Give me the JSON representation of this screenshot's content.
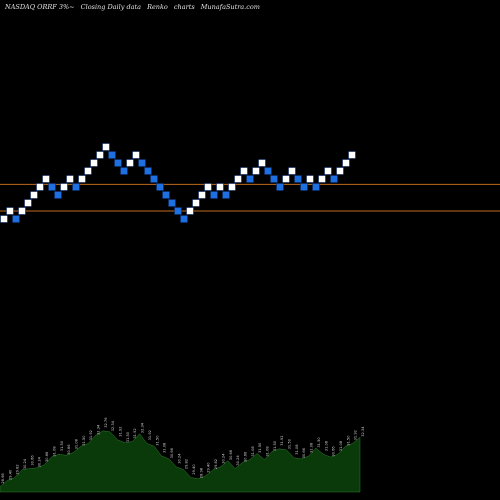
{
  "title": {
    "parts": [
      {
        "key": "ticker",
        "text": "NASDAQ ORRF 3%~"
      },
      {
        "key": "desc",
        "text": "Closing Daily data"
      },
      {
        "key": "type",
        "text": "Renko"
      },
      {
        "key": "word",
        "text": "charts"
      },
      {
        "key": "site",
        "text": "MunafaSutra.com"
      }
    ]
  },
  "colors": {
    "background": "#000000",
    "up_brick": "#ffffff",
    "down_brick": "#1e6fe0",
    "brick_border": "#0a2a66",
    "reference_line": "#c06a1e",
    "volume_fill": "#0a3a0a",
    "volume_stroke": "#2f7a2f"
  },
  "chart_data": {
    "type": "renko",
    "reference_lines": [
      30.8,
      29.4
    ],
    "bricks": [
      {
        "dir": "up",
        "close": 28.98
      },
      {
        "dir": "up",
        "close": 29.4
      },
      {
        "dir": "down",
        "close": 28.98
      },
      {
        "dir": "up",
        "close": 29.4
      },
      {
        "dir": "up",
        "close": 29.82
      },
      {
        "dir": "up",
        "close": 30.24
      },
      {
        "dir": "up",
        "close": 30.66
      },
      {
        "dir": "up",
        "close": 31.08
      },
      {
        "dir": "down",
        "close": 30.66
      },
      {
        "dir": "down",
        "close": 30.24
      },
      {
        "dir": "up",
        "close": 30.66
      },
      {
        "dir": "up",
        "close": 31.08
      },
      {
        "dir": "down",
        "close": 30.66
      },
      {
        "dir": "up",
        "close": 31.08
      },
      {
        "dir": "up",
        "close": 31.5
      },
      {
        "dir": "up",
        "close": 31.92
      },
      {
        "dir": "up",
        "close": 32.34
      },
      {
        "dir": "up",
        "close": 32.76
      },
      {
        "dir": "down",
        "close": 32.34
      },
      {
        "dir": "down",
        "close": 31.92
      },
      {
        "dir": "down",
        "close": 31.5
      },
      {
        "dir": "up",
        "close": 31.92
      },
      {
        "dir": "up",
        "close": 32.34
      },
      {
        "dir": "down",
        "close": 31.92
      },
      {
        "dir": "down",
        "close": 31.5
      },
      {
        "dir": "down",
        "close": 31.08
      },
      {
        "dir": "down",
        "close": 30.66
      },
      {
        "dir": "down",
        "close": 30.24
      },
      {
        "dir": "down",
        "close": 29.82
      },
      {
        "dir": "down",
        "close": 29.4
      },
      {
        "dir": "down",
        "close": 28.98
      },
      {
        "dir": "up",
        "close": 29.4
      },
      {
        "dir": "up",
        "close": 29.82
      },
      {
        "dir": "up",
        "close": 30.24
      },
      {
        "dir": "up",
        "close": 30.66
      },
      {
        "dir": "down",
        "close": 30.24
      },
      {
        "dir": "up",
        "close": 30.66
      },
      {
        "dir": "down",
        "close": 30.24
      },
      {
        "dir": "up",
        "close": 30.66
      },
      {
        "dir": "up",
        "close": 31.08
      },
      {
        "dir": "up",
        "close": 31.5
      },
      {
        "dir": "down",
        "close": 31.08
      },
      {
        "dir": "up",
        "close": 31.5
      },
      {
        "dir": "up",
        "close": 31.92
      },
      {
        "dir": "down",
        "close": 31.5
      },
      {
        "dir": "down",
        "close": 31.08
      },
      {
        "dir": "down",
        "close": 30.66
      },
      {
        "dir": "up",
        "close": 31.08
      },
      {
        "dir": "up",
        "close": 31.5
      },
      {
        "dir": "down",
        "close": 31.08
      },
      {
        "dir": "down",
        "close": 30.66
      },
      {
        "dir": "up",
        "close": 31.08
      },
      {
        "dir": "down",
        "close": 30.66
      },
      {
        "dir": "up",
        "close": 31.08
      },
      {
        "dir": "up",
        "close": 31.5
      },
      {
        "dir": "down",
        "close": 31.08
      },
      {
        "dir": "up",
        "close": 31.5
      },
      {
        "dir": "up",
        "close": 31.92
      },
      {
        "dir": "up",
        "close": 32.34
      }
    ],
    "volume_labels": [
      "28.98",
      "29.40",
      "29.82",
      "30.24",
      "30.66",
      "30.24",
      "30.66",
      "31.08",
      "31.50",
      "30.66",
      "31.08",
      "31.50",
      "31.92",
      "32.34",
      "32.76",
      "32.34",
      "31.92",
      "31.50",
      "31.92",
      "32.34",
      "31.92",
      "31.50",
      "31.08",
      "30.66",
      "30.24",
      "29.82",
      "29.40",
      "28.98",
      "29.40",
      "29.82",
      "30.24",
      "30.66",
      "30.24",
      "30.66",
      "31.08",
      "31.50",
      "31.08",
      "31.50",
      "31.92",
      "31.50",
      "31.08",
      "30.66",
      "31.08",
      "31.50",
      "31.08",
      "30.66",
      "31.08",
      "31.50",
      "31.92",
      "32.34"
    ],
    "volume_values": [
      3,
      5,
      8,
      11,
      13,
      12,
      15,
      18,
      21,
      19,
      22,
      24,
      27,
      30,
      34,
      32,
      29,
      26,
      28,
      31,
      27,
      24,
      20,
      17,
      14,
      11,
      8,
      6,
      9,
      11,
      14,
      16,
      13,
      15,
      18,
      20,
      18,
      21,
      24,
      22,
      19,
      17,
      20,
      23,
      21,
      18,
      21,
      24,
      27,
      29
    ]
  }
}
